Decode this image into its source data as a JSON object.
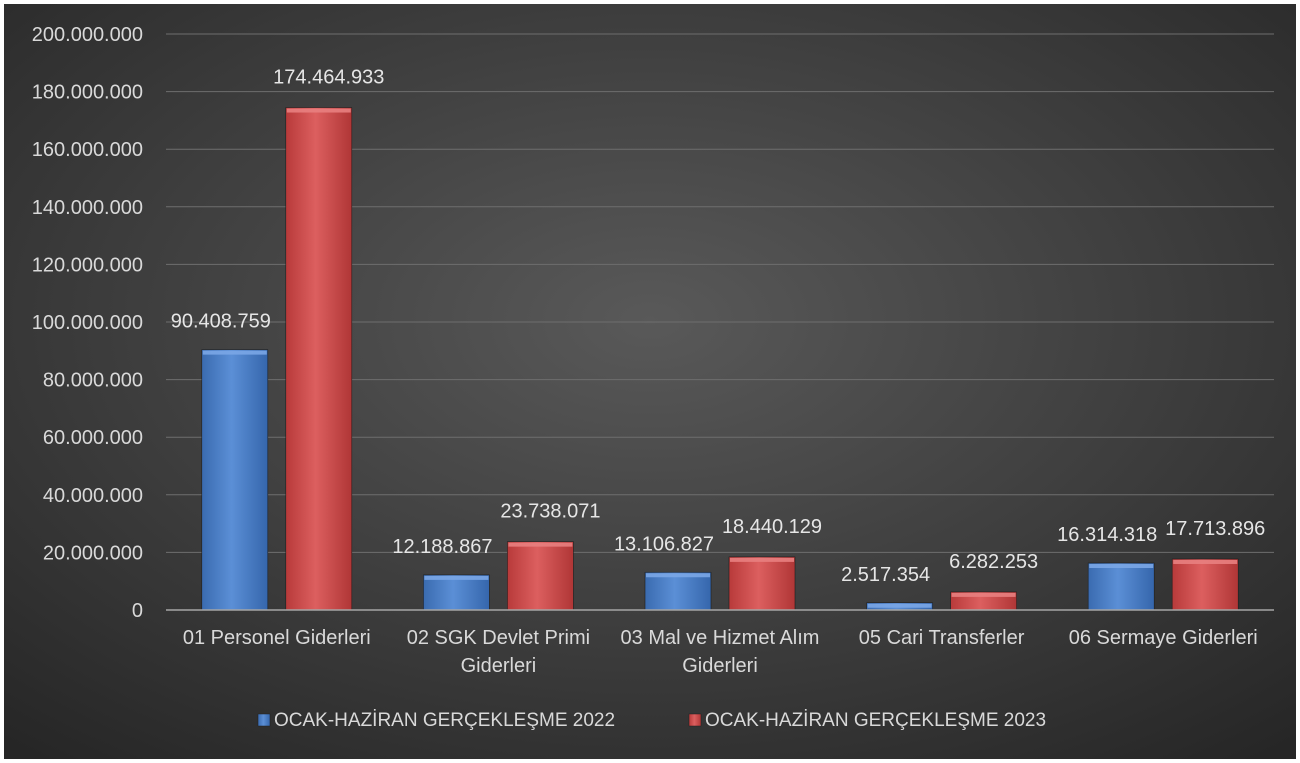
{
  "chart_data": {
    "type": "bar",
    "title": "",
    "xlabel": "",
    "ylabel": "",
    "ylim": [
      0,
      200000000
    ],
    "yticks": [
      0,
      20000000,
      40000000,
      60000000,
      80000000,
      100000000,
      120000000,
      140000000,
      160000000,
      180000000,
      200000000
    ],
    "ytick_labels": [
      "0",
      "20.000.000",
      "40.000.000",
      "60.000.000",
      "80.000.000",
      "100.000.000",
      "120.000.000",
      "140.000.000",
      "160.000.000",
      "180.000.000",
      "200.000.000"
    ],
    "grid": true,
    "legend_position": "bottom",
    "categories": [
      [
        "01 Personel Giderleri"
      ],
      [
        "02 SGK Devlet Primi",
        "Giderleri"
      ],
      [
        "03 Mal ve Hizmet Alım",
        "Giderleri"
      ],
      [
        "05 Cari Transferler"
      ],
      [
        "06 Sermaye Giderleri"
      ]
    ],
    "series": [
      {
        "name": "OCAK-HAZİRAN GERÇEKLEŞME 2022",
        "color": "#4a7fc8",
        "values": [
          90408759,
          12188867,
          13106827,
          2517354,
          16314318
        ],
        "labels": [
          "90.408.759",
          "12.188.867",
          "13.106.827",
          "2.517.354",
          "16.314.318"
        ]
      },
      {
        "name": "OCAK-HAZİRAN GERÇEKLEŞME 2023",
        "color": "#cf4a4a",
        "values": [
          174464933,
          23738071,
          18440129,
          6282253,
          17713896
        ],
        "labels": [
          "174.464.933",
          "23.738.071",
          "18.440.129",
          "6.282.253",
          "17.713.896"
        ]
      }
    ]
  }
}
